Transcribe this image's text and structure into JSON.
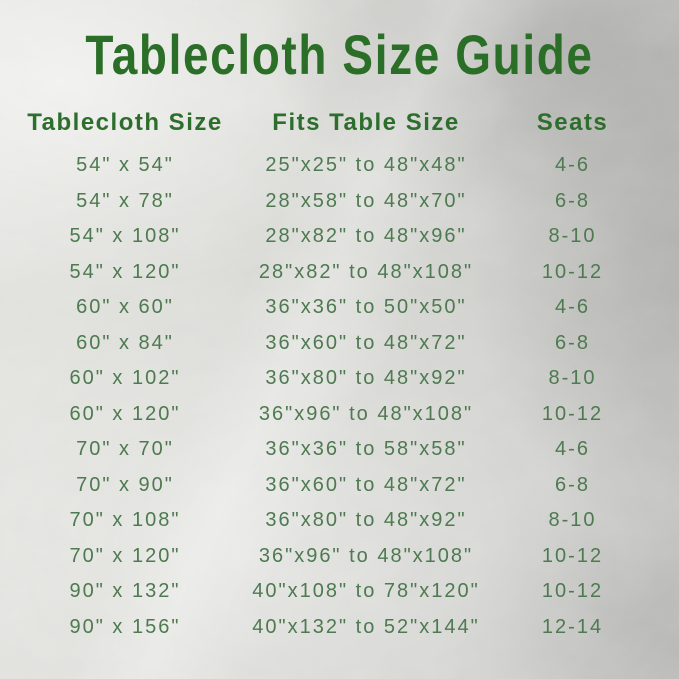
{
  "colors": {
    "title_green": "#2b6e27",
    "header_green": "#2d6e2d",
    "body_green": "#4d7a50",
    "background_silver": "#d3d3d0"
  },
  "chart_data": {
    "type": "table",
    "title": "Tablecloth Size Guide",
    "columns": [
      "Tablecloth Size",
      "Fits Table Size",
      "Seats"
    ],
    "rows": [
      [
        "54\" x 54\"",
        "25\"x25\" to 48\"x48\"",
        "4-6"
      ],
      [
        "54\" x 78\"",
        "28\"x58\" to 48\"x70\"",
        "6-8"
      ],
      [
        "54\" x 108\"",
        "28\"x82\" to 48\"x96\"",
        "8-10"
      ],
      [
        "54\" x 120\"",
        "28\"x82\" to 48\"x108\"",
        "10-12"
      ],
      [
        "60\" x 60\"",
        "36\"x36\" to 50\"x50\"",
        "4-6"
      ],
      [
        "60\" x 84\"",
        "36\"x60\" to 48\"x72\"",
        "6-8"
      ],
      [
        "60\" x 102\"",
        "36\"x80\" to 48\"x92\"",
        "8-10"
      ],
      [
        "60\" x 120\"",
        "36\"x96\" to 48\"x108\"",
        "10-12"
      ],
      [
        "70\" x 70\"",
        "36\"x36\" to 58\"x58\"",
        "4-6"
      ],
      [
        "70\" x 90\"",
        "36\"x60\" to 48\"x72\"",
        "6-8"
      ],
      [
        "70\" x 108\"",
        "36\"x80\" to 48\"x92\"",
        "8-10"
      ],
      [
        "70\" x 120\"",
        "36\"x96\" to 48\"x108\"",
        "10-12"
      ],
      [
        "90\" x 132\"",
        "40\"x108\" to 78\"x120\"",
        "10-12"
      ],
      [
        "90\" x 156\"",
        "40\"x132\" to 52\"x144\"",
        "12-14"
      ]
    ]
  }
}
